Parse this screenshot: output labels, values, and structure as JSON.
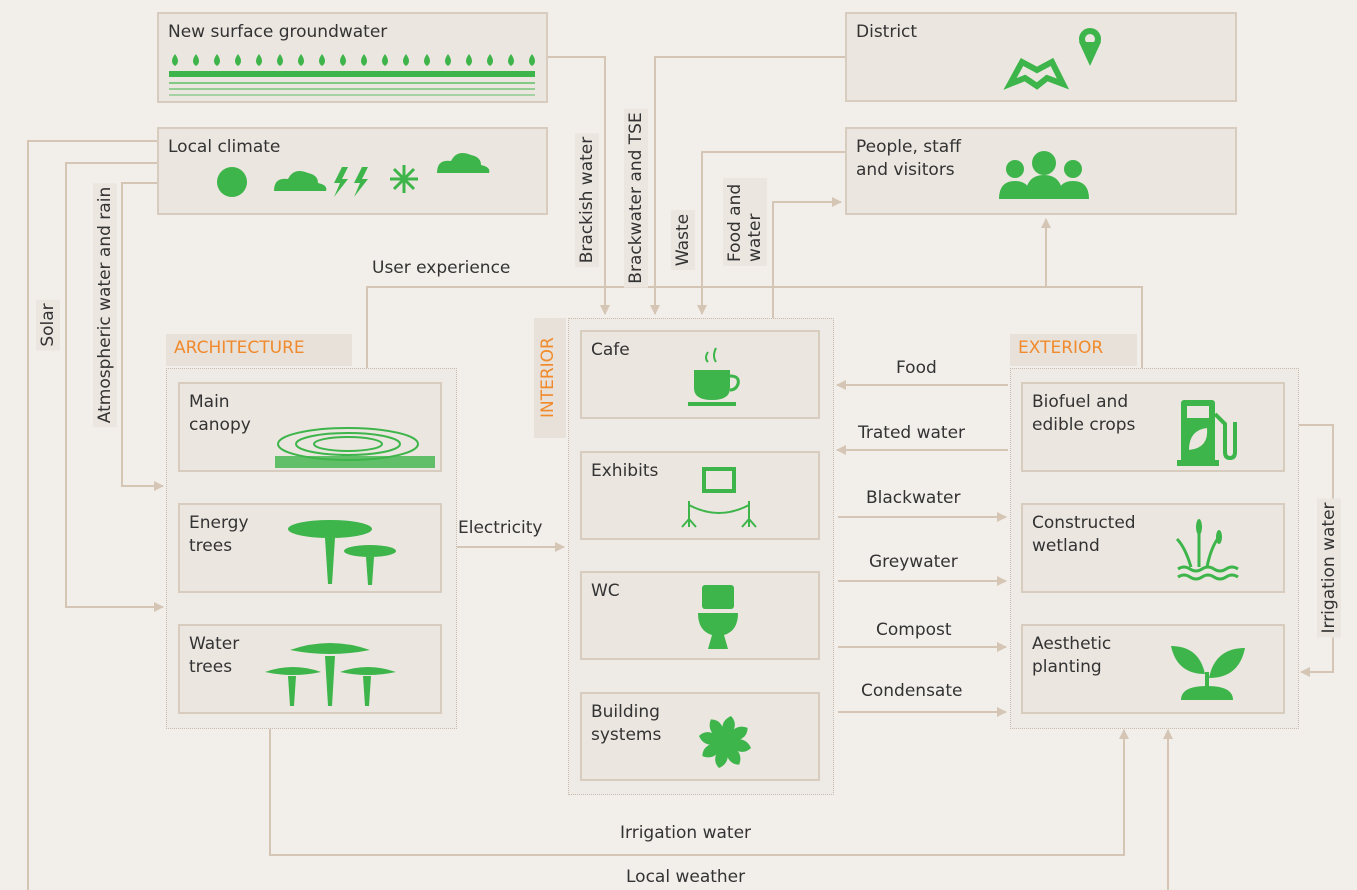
{
  "sources": {
    "groundwater": "New surface groundwater",
    "district": "District",
    "climate": "Local climate",
    "people": "People, staff and visitors"
  },
  "architecture": {
    "label": "ARCHITECTURE",
    "items": [
      "Main canopy",
      "Energy trees",
      "Water trees"
    ]
  },
  "interior": {
    "label": "INTERIOR",
    "items": [
      "Cafe",
      "Exhibits",
      "WC",
      "Building systems"
    ]
  },
  "exterior": {
    "label": "EXTERIOR",
    "items": [
      "Biofuel and edible crops",
      "Constructed wetland",
      "Aesthetic planting"
    ]
  },
  "flows": {
    "solar": "Solar",
    "atmospheric": "Atmospheric water and rain",
    "brackish": "Brackish water",
    "brackwater": "Brackwater and TSE",
    "waste": "Waste",
    "food_water": "Food and water",
    "user_experience": "User experience",
    "electricity": "Electricity",
    "food": "Food",
    "treated": "Trated water",
    "blackwater": "Blackwater",
    "greywater": "Greywater",
    "compost": "Compost",
    "condensate": "Condensate",
    "irrigation_right": "Irrigation water",
    "irrigation_bottom": "Irrigation water",
    "local_weather": "Local weather"
  }
}
